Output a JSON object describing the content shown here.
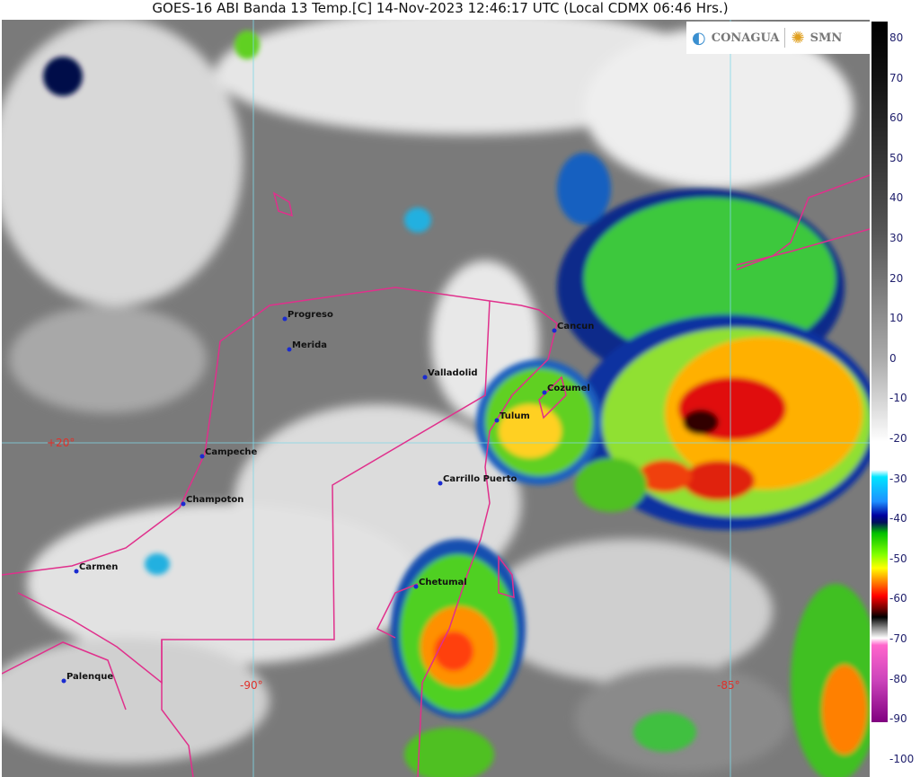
{
  "title": "GOES-16 ABI Banda 13 Temp.[C] 14-Nov-2023 12:46:17 UTC (Local CDMX  06:46 Hrs.)",
  "logos": {
    "left": "CONAGUA",
    "right": "SMN"
  },
  "colorbar": {
    "unit": "C",
    "ticks": [
      "80",
      "70",
      "60",
      "50",
      "40",
      "30",
      "20",
      "10",
      "0",
      "-10",
      "-20",
      "-30",
      "-40",
      "-50",
      "-60",
      "-70",
      "-80",
      "-90",
      "-100"
    ]
  },
  "grid_labels": {
    "lat20": "+20°",
    "lon90": "-90°",
    "lon85": "-85°"
  },
  "cities": [
    {
      "name": "Progreso"
    },
    {
      "name": "Merida"
    },
    {
      "name": "Valladolid"
    },
    {
      "name": "Cancun"
    },
    {
      "name": "Cozumel"
    },
    {
      "name": "Tulum"
    },
    {
      "name": "Campeche"
    },
    {
      "name": "Champoton"
    },
    {
      "name": "Carrillo Puerto"
    },
    {
      "name": "Carmen"
    },
    {
      "name": "Chetumal"
    },
    {
      "name": "Palenque"
    }
  ],
  "colors": {
    "coastline": "#e0308c",
    "grid": "#7fd8e8",
    "city_dot": "#1a2bd0"
  }
}
